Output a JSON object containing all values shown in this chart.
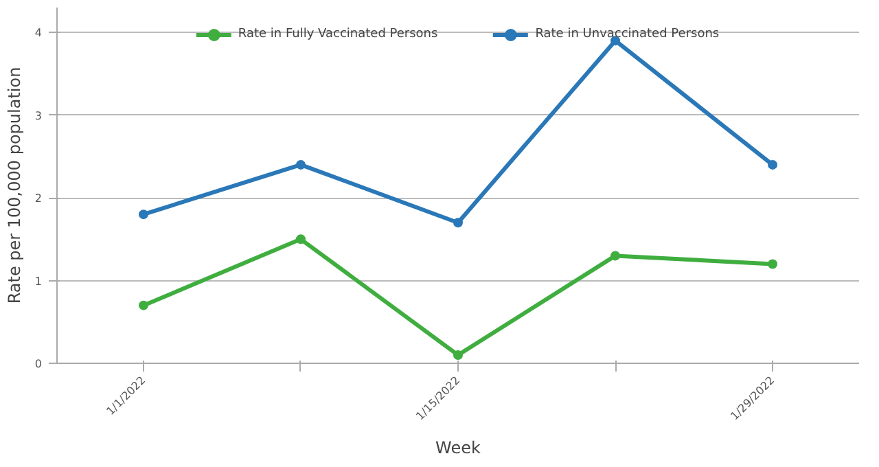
{
  "chart_data": {
    "type": "line",
    "xlabel": "Week",
    "ylabel": "Rate per 100,000 population",
    "categories": [
      "1/1/2022",
      null,
      "1/15/2022",
      null,
      "1/29/2022"
    ],
    "series": [
      {
        "name": "Rate in Fully Vaccinated Persons",
        "color": "#3fae3f",
        "values": [
          0.7,
          1.5,
          0.1,
          1.3,
          1.2
        ]
      },
      {
        "name": "Rate in Unvaccinated Persons",
        "color": "#2a78b8",
        "values": [
          1.8,
          2.4,
          1.7,
          3.9,
          2.4
        ]
      }
    ],
    "ylim": [
      0,
      4.3
    ],
    "yticks": [
      0,
      1,
      2,
      3,
      4
    ],
    "grid": "y",
    "legend": "top",
    "marker": "circle",
    "line_style": "solid"
  }
}
